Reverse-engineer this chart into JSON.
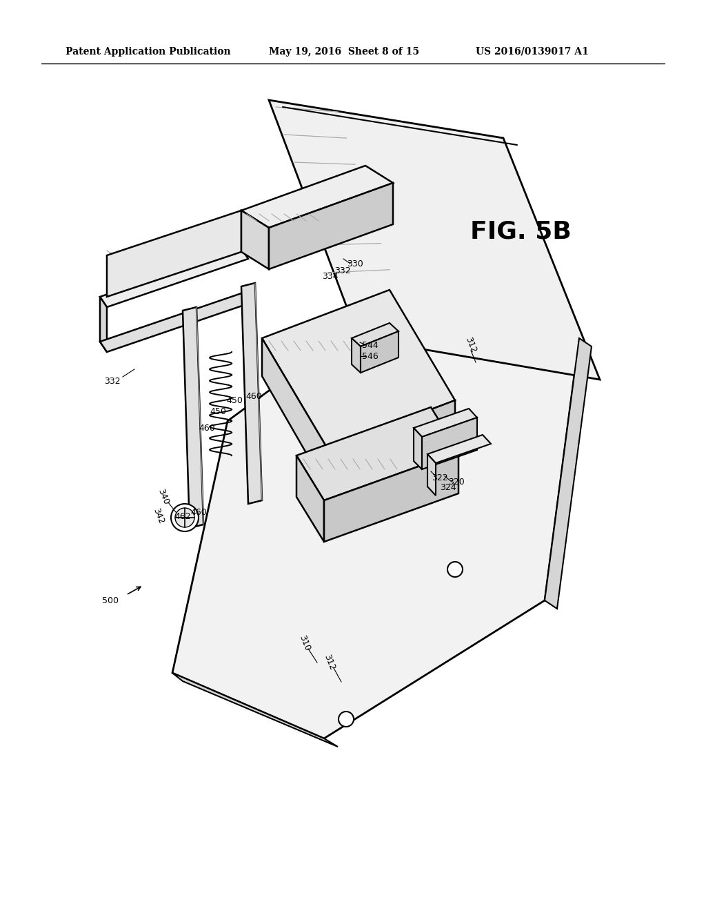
{
  "header_left": "Patent Application Publication",
  "header_mid": "May 19, 2016  Sheet 8 of 15",
  "header_right": "US 2016/0139017 A1",
  "fig_label": "FIG. 5B",
  "bg_color": "#ffffff",
  "line_color": "#000000",
  "gray_color": "#888888",
  "light_gray": "#cccccc"
}
